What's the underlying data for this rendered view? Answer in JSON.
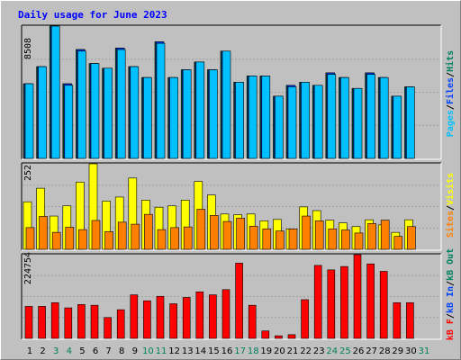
{
  "title": "Daily usage for June 2023",
  "colors": {
    "hits": "#00805c",
    "files": "#0040ff",
    "pages": "#00c0ff",
    "visits": "#ffff00",
    "sites": "#ff8000",
    "kbf": "#ff0000",
    "kbin": "#0040ff",
    "kbout": "#00805c",
    "weekday_label": "#000000",
    "weekend_label": "#00805c"
  },
  "chart_data": [
    {
      "type": "bar",
      "panel": "hits-files-pages",
      "y_max_label": "8508",
      "ylim": [
        0,
        8508
      ],
      "legend": [
        "Pages",
        "/",
        "Files",
        "/",
        "Hits"
      ],
      "categories": [
        "1",
        "2",
        "3",
        "4",
        "5",
        "6",
        "7",
        "8",
        "9",
        "10",
        "11",
        "12",
        "13",
        "14",
        "15",
        "16",
        "17",
        "18",
        "19",
        "20",
        "21",
        "22",
        "23",
        "24",
        "25",
        "26",
        "27",
        "28",
        "29",
        "30",
        "31"
      ],
      "series": [
        {
          "name": "Hits",
          "values": [
            4800,
            5900,
            8508,
            4800,
            7000,
            6100,
            5800,
            7100,
            5900,
            5200,
            7500,
            5200,
            5700,
            6200,
            5700,
            6900,
            4900,
            5300,
            5300,
            4000,
            4700,
            4900,
            4700,
            5500,
            5200,
            4500,
            5500,
            5200,
            4000,
            4600,
            0
          ]
        },
        {
          "name": "Files",
          "values": [
            4800,
            5900,
            8508,
            4800,
            7000,
            6100,
            5800,
            7100,
            5900,
            5200,
            7500,
            5200,
            5700,
            6200,
            5700,
            6900,
            4900,
            5300,
            5300,
            4000,
            4700,
            4900,
            4700,
            5500,
            5200,
            4500,
            5500,
            5200,
            4000,
            4600,
            0
          ]
        },
        {
          "name": "Pages",
          "values": [
            4800,
            5900,
            8508,
            4700,
            6900,
            6100,
            5800,
            7000,
            5900,
            5200,
            7400,
            5200,
            5700,
            6200,
            5700,
            6900,
            4900,
            5300,
            5300,
            4000,
            4600,
            4900,
            4700,
            5400,
            5200,
            4500,
            5400,
            5200,
            4000,
            4600,
            0
          ]
        }
      ]
    },
    {
      "type": "bar",
      "panel": "visits-sites",
      "y_max_label": "252",
      "ylim": [
        0,
        252
      ],
      "legend": [
        "Sites",
        "/",
        "Visits"
      ],
      "categories": [
        "1",
        "2",
        "3",
        "4",
        "5",
        "6",
        "7",
        "8",
        "9",
        "10",
        "11",
        "12",
        "13",
        "14",
        "15",
        "16",
        "17",
        "18",
        "19",
        "20",
        "21",
        "22",
        "23",
        "24",
        "25",
        "26",
        "27",
        "28",
        "29",
        "30",
        "31"
      ],
      "series": [
        {
          "name": "Visits",
          "values": [
            140,
            180,
            98,
            128,
            198,
            252,
            142,
            154,
            210,
            145,
            124,
            128,
            145,
            200,
            160,
            104,
            102,
            104,
            84,
            88,
            60,
            125,
            114,
            86,
            78,
            67,
            87,
            72,
            50,
            87,
            0
          ]
        },
        {
          "name": "Sites",
          "values": [
            64,
            97,
            50,
            65,
            58,
            85,
            52,
            80,
            74,
            103,
            58,
            64,
            66,
            118,
            100,
            82,
            92,
            68,
            60,
            54,
            60,
            98,
            84,
            60,
            57,
            48,
            76,
            86,
            38,
            67,
            0
          ]
        }
      ]
    },
    {
      "type": "bar",
      "panel": "kbytes",
      "y_max_label": "224754",
      "ylim": [
        0,
        224754
      ],
      "legend": [
        "kB F",
        "/",
        "kB In",
        "/",
        "kB Out"
      ],
      "categories": [
        "1",
        "2",
        "3",
        "4",
        "5",
        "6",
        "7",
        "8",
        "9",
        "10",
        "11",
        "12",
        "13",
        "14",
        "15",
        "16",
        "17",
        "18",
        "19",
        "20",
        "21",
        "22",
        "23",
        "24",
        "25",
        "26",
        "27",
        "28",
        "29",
        "30",
        "31"
      ],
      "series": [
        {
          "name": "kB F",
          "values": [
            86000,
            86000,
            96000,
            82000,
            91000,
            89000,
            56000,
            77000,
            117000,
            101000,
            113000,
            93000,
            110000,
            125000,
            117000,
            131000,
            202000,
            89000,
            20000,
            7000,
            10000,
            104000,
            196000,
            184000,
            193000,
            224754,
            200000,
            180000,
            96000,
            96000,
            0
          ]
        }
      ]
    }
  ],
  "day_labels": [
    {
      "label": "1",
      "weekend": false
    },
    {
      "label": "2",
      "weekend": false
    },
    {
      "label": "3",
      "weekend": true
    },
    {
      "label": "4",
      "weekend": true
    },
    {
      "label": "5",
      "weekend": false
    },
    {
      "label": "6",
      "weekend": false
    },
    {
      "label": "7",
      "weekend": false
    },
    {
      "label": "8",
      "weekend": false
    },
    {
      "label": "9",
      "weekend": false
    },
    {
      "label": "10",
      "weekend": true
    },
    {
      "label": "11",
      "weekend": true
    },
    {
      "label": "12",
      "weekend": false
    },
    {
      "label": "13",
      "weekend": false
    },
    {
      "label": "14",
      "weekend": false
    },
    {
      "label": "15",
      "weekend": false
    },
    {
      "label": "16",
      "weekend": false
    },
    {
      "label": "17",
      "weekend": true
    },
    {
      "label": "18",
      "weekend": true
    },
    {
      "label": "19",
      "weekend": false
    },
    {
      "label": "20",
      "weekend": false
    },
    {
      "label": "21",
      "weekend": false
    },
    {
      "label": "22",
      "weekend": false
    },
    {
      "label": "23",
      "weekend": false
    },
    {
      "label": "24",
      "weekend": true
    },
    {
      "label": "25",
      "weekend": true
    },
    {
      "label": "26",
      "weekend": false
    },
    {
      "label": "27",
      "weekend": false
    },
    {
      "label": "28",
      "weekend": false
    },
    {
      "label": "29",
      "weekend": false
    },
    {
      "label": "30",
      "weekend": false
    },
    {
      "label": "31",
      "weekend": true
    }
  ]
}
